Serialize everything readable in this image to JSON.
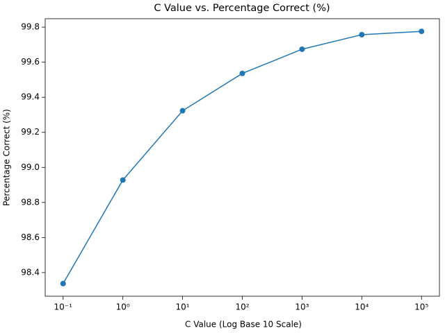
{
  "chart_data": {
    "type": "line",
    "title": "C Value vs. Percentage Correct (%)",
    "x_label": "C Value (Log Base 10 Scale)",
    "y_label": "Percentage Correct (%)",
    "x": [
      0.1,
      1,
      10,
      100,
      1000,
      10000,
      100000
    ],
    "values": [
      98.337,
      98.928,
      99.323,
      99.536,
      99.674,
      99.757,
      99.776
    ],
    "color": "#1f77b4",
    "x_scale": "log",
    "xlim": [
      0.050119,
      199526
    ],
    "xticks": [
      {
        "value": 0.1,
        "label": "10⁻¹"
      },
      {
        "value": 1,
        "label": "10⁰"
      },
      {
        "value": 10,
        "label": "10¹"
      },
      {
        "value": 100,
        "label": "10²"
      },
      {
        "value": 1000,
        "label": "10³"
      },
      {
        "value": 10000,
        "label": "10⁴"
      },
      {
        "value": 100000,
        "label": "10⁵"
      }
    ],
    "ylim": [
      98.265,
      99.848
    ],
    "yticks": [
      98.4,
      98.6,
      98.8,
      {
        "value": 99,
        "label": "99.0"
      },
      99.2,
      99.4,
      99.6,
      99.8
    ],
    "grid": false
  }
}
